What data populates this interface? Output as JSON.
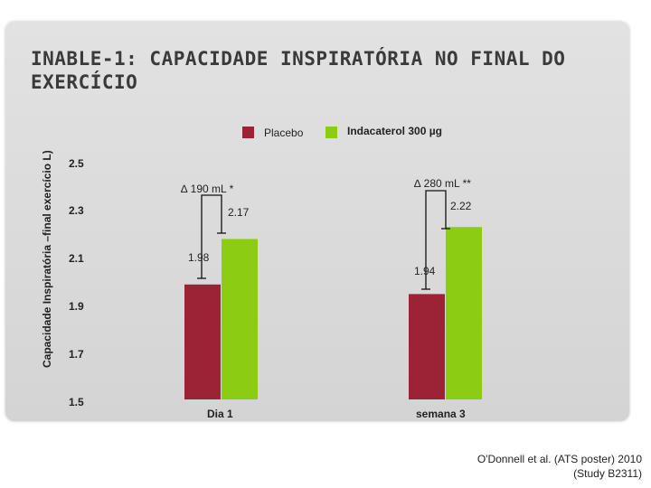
{
  "title": "INABLE-1: CAPACIDADE INSPIRATÓRIA NO FINAL DO EXERCÍCIO",
  "citation": {
    "line1": "O'Donnell et al. (ATS poster) 2010",
    "line2": "(Study B2311)"
  },
  "colors": {
    "placebo": "#9b2335",
    "indacaterol": "#8ccd14"
  },
  "chart_data": {
    "type": "bar",
    "ylabel": "Capacidade Inspiratória –final exercício L)",
    "ylim": [
      1.5,
      2.5
    ],
    "yticks": [
      "2.5",
      "2.3",
      "2.1",
      "1.9",
      "1.7",
      "1.5"
    ],
    "legend": [
      "Placebo",
      "Indacaterol 300 µg"
    ],
    "categories": [
      "Dia 1",
      "semana 3"
    ],
    "series": [
      {
        "name": "Placebo",
        "values": [
          1.98,
          1.94
        ],
        "labels": [
          "1.98",
          "1.94"
        ]
      },
      {
        "name": "Indacaterol 300 µg",
        "values": [
          2.17,
          2.22
        ],
        "labels": [
          "2.17",
          "2.22"
        ]
      }
    ],
    "annotations": [
      "∆ 190 mL *",
      "∆ 280 mL **"
    ]
  }
}
